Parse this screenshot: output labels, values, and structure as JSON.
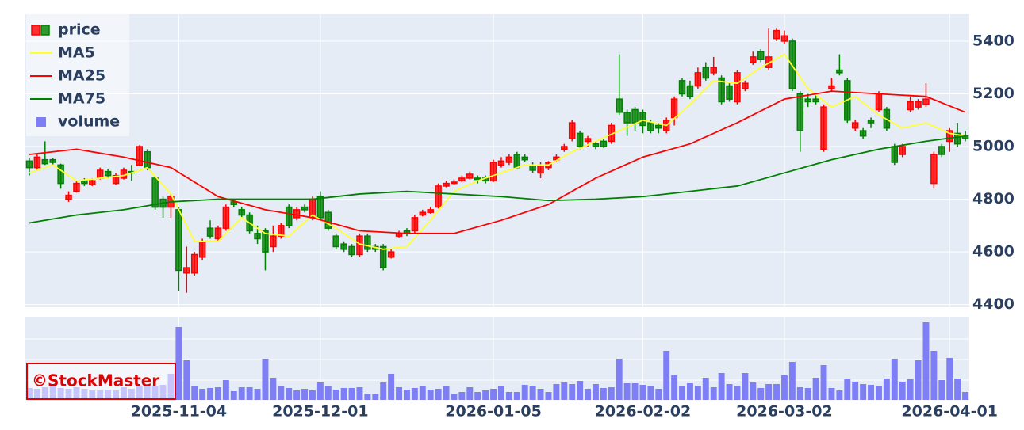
{
  "chart_data": {
    "type": "candlestick",
    "name": "price",
    "x": [
      "2025-10-06",
      "2025-10-07",
      "2025-10-08",
      "2025-10-09",
      "2025-10-10",
      "2025-10-14",
      "2025-10-15",
      "2025-10-16",
      "2025-10-17",
      "2025-10-20",
      "2025-10-21",
      "2025-10-22",
      "2025-10-23",
      "2025-10-24",
      "2025-10-27",
      "2025-10-28",
      "2025-10-29",
      "2025-10-30",
      "2025-10-31",
      "2025-11-04",
      "2025-11-05",
      "2025-11-06",
      "2025-11-07",
      "2025-11-10",
      "2025-11-11",
      "2025-11-12",
      "2025-11-13",
      "2025-11-14",
      "2025-11-17",
      "2025-11-18",
      "2025-11-19",
      "2025-11-20",
      "2025-11-21",
      "2025-11-25",
      "2025-11-26",
      "2025-11-27",
      "2025-11-28",
      "2025-12-01",
      "2025-12-02",
      "2025-12-03",
      "2025-12-04",
      "2025-12-05",
      "2025-12-08",
      "2025-12-09",
      "2025-12-10",
      "2025-12-11",
      "2025-12-12",
      "2025-12-15",
      "2025-12-16",
      "2025-12-17",
      "2025-12-18",
      "2025-12-19",
      "2025-12-22",
      "2025-12-23",
      "2025-12-24",
      "2025-12-25",
      "2025-12-26",
      "2025-12-29",
      "2025-12-30",
      "2026-01-05",
      "2026-01-06",
      "2026-01-07",
      "2026-01-08",
      "2026-01-09",
      "2026-01-13",
      "2026-01-14",
      "2026-01-15",
      "2026-01-16",
      "2026-01-19",
      "2026-01-20",
      "2026-01-21",
      "2026-01-22",
      "2026-01-23",
      "2026-01-26",
      "2026-01-27",
      "2026-01-28",
      "2026-01-29",
      "2026-01-30",
      "2026-02-02",
      "2026-02-03",
      "2026-02-04",
      "2026-02-05",
      "2026-02-06",
      "2026-02-09",
      "2026-02-10",
      "2026-02-12",
      "2026-02-13",
      "2026-02-16",
      "2026-02-17",
      "2026-02-18",
      "2026-02-19",
      "2026-02-20",
      "2026-02-24",
      "2026-02-25",
      "2026-02-26",
      "2026-02-27",
      "2026-03-02",
      "2026-03-03",
      "2026-03-04",
      "2026-03-05",
      "2026-03-06",
      "2026-03-09",
      "2026-03-10",
      "2026-03-11",
      "2026-03-12",
      "2026-03-13",
      "2026-03-16",
      "2026-03-17",
      "2026-03-18",
      "2026-03-19",
      "2026-03-23",
      "2026-03-24",
      "2026-03-25",
      "2026-03-26",
      "2026-03-27",
      "2026-03-30",
      "2026-03-31",
      "2026-04-01",
      "2026-04-02",
      "2026-04-03"
    ],
    "open": [
      4945,
      4920,
      4950,
      4950,
      4930,
      4800,
      4830,
      4870,
      4855,
      4880,
      4905,
      4860,
      4880,
      4905,
      4930,
      4980,
      4880,
      4800,
      4770,
      4760,
      4520,
      4520,
      4580,
      4690,
      4650,
      4690,
      4790,
      4760,
      4740,
      4670,
      4680,
      4620,
      4660,
      4770,
      4730,
      4770,
      4730,
      4810,
      4750,
      4660,
      4630,
      4620,
      4590,
      4660,
      4620,
      4620,
      4580,
      4660,
      4680,
      4680,
      4740,
      4750,
      4770,
      4850,
      4860,
      4870,
      4880,
      4880,
      4880,
      4870,
      4930,
      4940,
      4970,
      4960,
      4930,
      4900,
      4920,
      4950,
      4990,
      5030,
      5050,
      5020,
      5010,
      5020,
      5020,
      5180,
      5130,
      5140,
      5130,
      5090,
      5080,
      5060,
      5110,
      5250,
      5230,
      5230,
      5300,
      5280,
      5260,
      5230,
      5170,
      5220,
      5320,
      5360,
      5300,
      5410,
      5400,
      5400,
      5200,
      5180,
      5180,
      4990,
      5220,
      5290,
      5250,
      5070,
      5060,
      5100,
      5140,
      5140,
      5000,
      4970,
      5140,
      5150,
      5160,
      4860,
      5000,
      5020,
      5050,
      5040
    ],
    "high": [
      4955,
      4970,
      5020,
      4955,
      4935,
      4830,
      4870,
      4880,
      4880,
      4920,
      4915,
      4900,
      4920,
      4930,
      5005,
      4990,
      4885,
      4810,
      4820,
      4770,
      4620,
      4600,
      4650,
      4720,
      4700,
      4780,
      4800,
      4770,
      4750,
      4700,
      4690,
      4700,
      4710,
      4780,
      4770,
      4780,
      4810,
      4830,
      4760,
      4670,
      4640,
      4630,
      4670,
      4670,
      4630,
      4630,
      4610,
      4680,
      4690,
      4740,
      4760,
      4770,
      4860,
      4870,
      4875,
      4890,
      4905,
      4890,
      4890,
      4950,
      4960,
      4970,
      4980,
      4970,
      4940,
      4940,
      4945,
      4970,
      5010,
      5100,
      5060,
      5040,
      5020,
      5030,
      5090,
      5350,
      5140,
      5150,
      5140,
      5100,
      5090,
      5110,
      5190,
      5260,
      5250,
      5300,
      5320,
      5340,
      5270,
      5240,
      5290,
      5250,
      5360,
      5370,
      5450,
      5450,
      5440,
      5410,
      5210,
      5200,
      5200,
      5160,
      5260,
      5350,
      5260,
      5100,
      5070,
      5110,
      5210,
      5150,
      5010,
      5010,
      5190,
      5180,
      5240,
      4980,
      5010,
      5070,
      5090,
      5060
    ],
    "low": [
      4890,
      4910,
      4930,
      4930,
      4840,
      4790,
      4825,
      4850,
      4850,
      4875,
      4880,
      4855,
      4875,
      4870,
      4925,
      4910,
      4760,
      4730,
      4730,
      4450,
      4445,
      4510,
      4570,
      4650,
      4640,
      4680,
      4770,
      4730,
      4670,
      4630,
      4530,
      4600,
      4650,
      4690,
      4720,
      4750,
      4720,
      4720,
      4680,
      4610,
      4600,
      4580,
      4580,
      4600,
      4600,
      4530,
      4575,
      4655,
      4660,
      4670,
      4735,
      4745,
      4765,
      4845,
      4855,
      4865,
      4875,
      4860,
      4860,
      4865,
      4920,
      4930,
      4915,
      4940,
      4900,
      4880,
      4910,
      4940,
      4980,
      5020,
      4990,
      5000,
      4990,
      4995,
      5010,
      5120,
      5040,
      5060,
      5050,
      5050,
      5050,
      5050,
      5080,
      5190,
      5180,
      5220,
      5250,
      5270,
      5160,
      5170,
      5160,
      5210,
      5310,
      5320,
      5290,
      5400,
      5390,
      5210,
      4980,
      5150,
      5160,
      4980,
      5210,
      5270,
      5090,
      5060,
      5030,
      5070,
      5130,
      5060,
      4930,
      4960,
      5130,
      5140,
      5150,
      4840,
      4960,
      4980,
      5000,
      5020
    ],
    "close": [
      4920,
      4960,
      4935,
      4940,
      4860,
      4815,
      4860,
      4860,
      4870,
      4910,
      4890,
      4890,
      4910,
      4900,
      5000,
      4920,
      4770,
      4770,
      4810,
      4530,
      4540,
      4590,
      4640,
      4660,
      4690,
      4770,
      4780,
      4740,
      4680,
      4650,
      4600,
      4660,
      4700,
      4700,
      4760,
      4760,
      4800,
      4730,
      4690,
      4620,
      4610,
      4590,
      4660,
      4610,
      4610,
      4540,
      4600,
      4670,
      4670,
      4730,
      4750,
      4760,
      4850,
      4860,
      4865,
      4880,
      4895,
      4875,
      4870,
      4940,
      4945,
      4960,
      4920,
      4950,
      4910,
      4930,
      4940,
      4960,
      5000,
      5090,
      5000,
      5030,
      5000,
      5000,
      5080,
      5130,
      5090,
      5090,
      5080,
      5060,
      5070,
      5100,
      5180,
      5200,
      5190,
      5280,
      5260,
      5300,
      5170,
      5180,
      5280,
      5240,
      5340,
      5330,
      5340,
      5440,
      5420,
      5220,
      5060,
      5170,
      5170,
      5150,
      5230,
      5280,
      5100,
      5090,
      5040,
      5090,
      5200,
      5070,
      4940,
      5000,
      5170,
      5170,
      5180,
      4970,
      4970,
      5060,
      5010,
      5030
    ],
    "increasing_color": "#ff0000",
    "decreasing_color": "#008000",
    "series": [
      {
        "name": "MA5",
        "color": "#ffff33",
        "x": [
          "2025-10-06",
          "2025-10-09",
          "2025-10-15",
          "2025-10-20",
          "2025-10-23",
          "2025-10-28",
          "2025-10-31",
          "2025-11-06",
          "2025-11-11",
          "2025-11-14",
          "2025-11-19",
          "2025-11-25",
          "2025-11-28",
          "2025-12-03",
          "2025-12-08",
          "2025-12-11",
          "2025-12-16",
          "2025-12-19",
          "2025-12-24",
          "2025-12-29",
          "2026-01-06",
          "2026-01-09",
          "2026-01-15",
          "2026-01-20",
          "2026-01-23",
          "2026-01-28",
          "2026-02-02",
          "2026-02-05",
          "2026-02-10",
          "2026-02-16",
          "2026-02-19",
          "2026-02-25",
          "2026-03-02",
          "2026-03-05",
          "2026-03-10",
          "2026-03-13",
          "2026-03-18",
          "2026-03-24",
          "2026-03-27",
          "2026-04-01",
          "2026-04-03"
        ],
        "values": [
          4900,
          4930,
          4870,
          4880,
          4890,
          4920,
          4820,
          4640,
          4640,
          4730,
          4670,
          4660,
          4740,
          4690,
          4630,
          4610,
          4620,
          4720,
          4830,
          4870,
          4900,
          4930,
          4930,
          4980,
          5020,
          5060,
          5100,
          5080,
          5160,
          5250,
          5240,
          5300,
          5350,
          5220,
          5150,
          5190,
          5120,
          5070,
          5090,
          5050,
          5040
        ]
      },
      {
        "name": "MA25",
        "color": "#ff0000",
        "x": [
          "2025-10-06",
          "2025-10-15",
          "2025-10-23",
          "2025-10-31",
          "2025-11-11",
          "2025-11-19",
          "2025-11-28",
          "2025-12-08",
          "2025-12-16",
          "2025-12-24",
          "2026-01-06",
          "2026-01-15",
          "2026-01-23",
          "2026-02-02",
          "2026-02-10",
          "2026-02-19",
          "2026-03-02",
          "2026-03-10",
          "2026-03-18",
          "2026-03-27",
          "2026-04-03"
        ],
        "values": [
          4970,
          4990,
          4960,
          4920,
          4810,
          4760,
          4730,
          4680,
          4670,
          4670,
          4720,
          4780,
          4880,
          4960,
          5010,
          5090,
          5180,
          5210,
          5200,
          5190,
          5130
        ]
      },
      {
        "name": "MA75",
        "color": "#008000",
        "x": [
          "2025-10-06",
          "2025-10-15",
          "2025-10-23",
          "2025-10-31",
          "2025-11-11",
          "2025-11-19",
          "2025-11-28",
          "2025-12-08",
          "2025-12-16",
          "2025-12-24",
          "2026-01-06",
          "2026-01-15",
          "2026-01-23",
          "2026-02-02",
          "2026-02-10",
          "2026-02-19",
          "2026-03-02",
          "2026-03-10",
          "2026-03-18",
          "2026-03-27",
          "2026-04-03"
        ],
        "values": [
          4710,
          4740,
          4760,
          4790,
          4800,
          4800,
          4800,
          4820,
          4830,
          4820,
          4810,
          4795,
          4800,
          4810,
          4830,
          4850,
          4900,
          4950,
          4990,
          5020,
          5040
        ]
      }
    ],
    "volume": {
      "name": "volume",
      "color": "#7f7ff5",
      "ylim": [
        0,
        105
      ],
      "values": [
        15,
        14,
        16,
        17,
        15,
        14,
        16,
        14,
        12,
        12,
        13,
        12,
        16,
        14,
        17,
        17,
        18,
        19,
        33,
        92,
        50,
        17,
        14,
        15,
        16,
        25,
        11,
        16,
        16,
        14,
        52,
        28,
        17,
        15,
        12,
        14,
        12,
        22,
        17,
        13,
        15,
        15,
        16,
        8,
        7,
        22,
        33,
        16,
        13,
        15,
        17,
        13,
        14,
        17,
        8,
        10,
        16,
        10,
        12,
        14,
        17,
        10,
        10,
        19,
        17,
        14,
        10,
        20,
        22,
        20,
        24,
        14,
        20,
        15,
        16,
        52,
        21,
        21,
        19,
        17,
        14,
        62,
        31,
        18,
        21,
        18,
        28,
        16,
        34,
        20,
        18,
        34,
        22,
        15,
        20,
        20,
        31,
        48,
        16,
        15,
        28,
        44,
        15,
        12,
        27,
        23,
        20,
        19,
        18,
        27,
        52,
        23,
        26,
        50,
        98,
        62,
        25,
        53,
        27,
        10
      ]
    },
    "ylim": [
      4390,
      5502
    ],
    "yticks": [
      4400,
      4600,
      4800,
      5000,
      5200,
      5400
    ],
    "xticks": [
      "2025-11-04",
      "2025-12-01",
      "2026-01-05",
      "2026-02-02",
      "2026-03-02",
      "2026-04-01"
    ],
    "legend": "top-left",
    "watermark": "©StockMaster"
  }
}
